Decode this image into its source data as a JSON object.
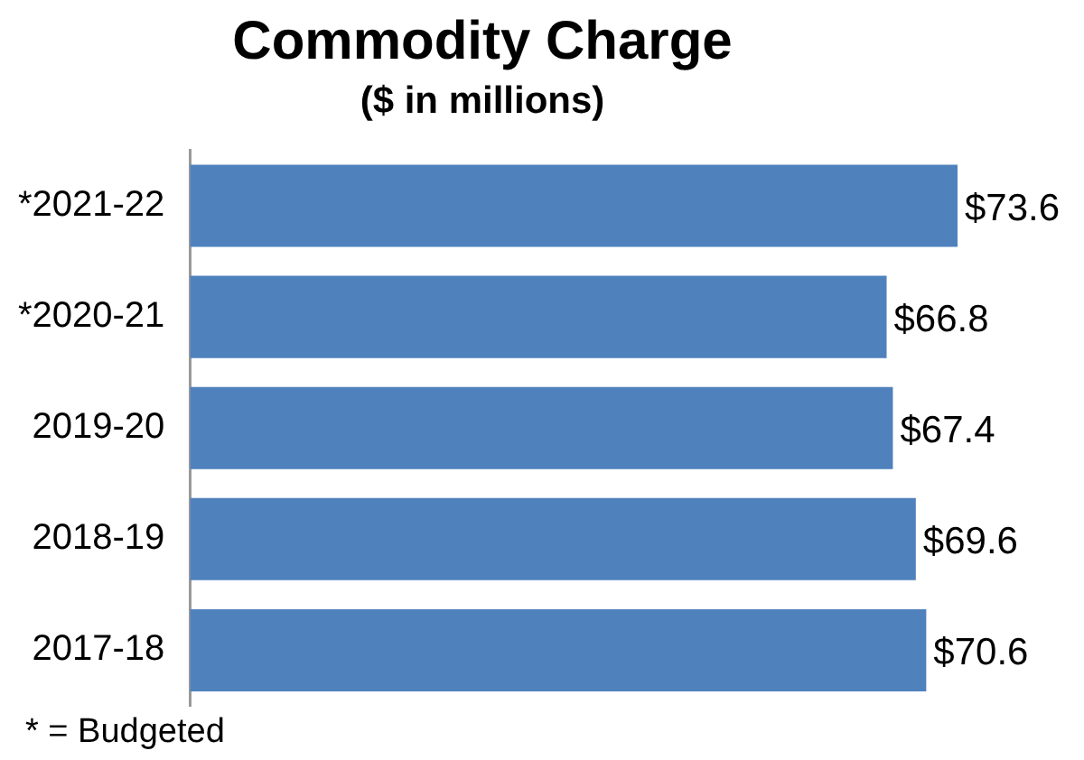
{
  "chart_data": {
    "type": "bar",
    "orientation": "horizontal",
    "title": "Commodity Charge",
    "subtitle": "($ in millions)",
    "categories": [
      "*2021-22",
      "*2020-21",
      "2019-20",
      "2018-19",
      "2017-18"
    ],
    "values": [
      73.6,
      66.8,
      67.4,
      69.6,
      70.6
    ],
    "value_labels": [
      "$73.6",
      "$66.8",
      "$67.4",
      "$69.6",
      "$70.6"
    ],
    "color": "#4f81bd",
    "xlim": [
      0,
      73.6
    ],
    "grid": false,
    "legend": false,
    "tick_labels": "y",
    "annotations": [
      "* = Budgeted"
    ]
  }
}
